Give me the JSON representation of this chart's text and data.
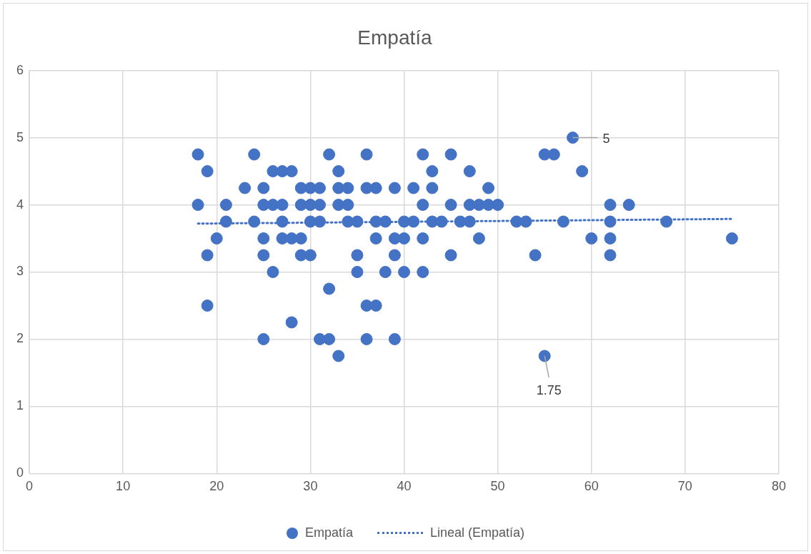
{
  "chart_data": {
    "type": "scatter",
    "title": "Empatía",
    "xlim": [
      0,
      80
    ],
    "xticks": [
      0,
      10,
      20,
      30,
      40,
      50,
      60,
      70,
      80
    ],
    "ylim": [
      0,
      6
    ],
    "yticks": [
      0,
      1,
      2,
      3,
      4,
      5,
      6
    ],
    "grid": true,
    "legend": "bottom",
    "series": [
      {
        "name": "Empatía",
        "marker": "circle",
        "color": "#4472c4",
        "x": [
          58,
          18,
          24,
          32,
          36,
          42,
          45,
          55,
          56,
          19,
          26,
          27,
          28,
          33,
          43,
          47,
          59,
          23,
          25,
          29,
          30,
          31,
          33,
          34,
          36,
          37,
          39,
          41,
          43,
          49,
          18,
          21,
          25,
          26,
          27,
          29,
          30,
          31,
          33,
          34,
          42,
          45,
          47,
          48,
          49,
          50,
          62,
          64,
          21,
          24,
          27,
          30,
          31,
          34,
          35,
          37,
          38,
          40,
          41,
          43,
          44,
          46,
          47,
          52,
          53,
          57,
          62,
          68,
          20,
          25,
          27,
          28,
          29,
          37,
          39,
          40,
          42,
          48,
          60,
          62,
          75,
          19,
          25,
          29,
          30,
          35,
          39,
          45,
          54,
          62,
          26,
          35,
          38,
          40,
          42,
          32,
          19,
          36,
          37,
          28,
          25,
          31,
          32,
          36,
          39,
          33,
          55
        ],
        "values": [
          5,
          4.75,
          4.75,
          4.75,
          4.75,
          4.75,
          4.75,
          4.75,
          4.75,
          4.5,
          4.5,
          4.5,
          4.5,
          4.5,
          4.5,
          4.5,
          4.5,
          4.25,
          4.25,
          4.25,
          4.25,
          4.25,
          4.25,
          4.25,
          4.25,
          4.25,
          4.25,
          4.25,
          4.25,
          4.25,
          4,
          4,
          4,
          4,
          4,
          4,
          4,
          4,
          4,
          4,
          4,
          4,
          4,
          4,
          4,
          4,
          4,
          4,
          3.75,
          3.75,
          3.75,
          3.75,
          3.75,
          3.75,
          3.75,
          3.75,
          3.75,
          3.75,
          3.75,
          3.75,
          3.75,
          3.75,
          3.75,
          3.75,
          3.75,
          3.75,
          3.75,
          3.75,
          3.5,
          3.5,
          3.5,
          3.5,
          3.5,
          3.5,
          3.5,
          3.5,
          3.5,
          3.5,
          3.5,
          3.5,
          3.5,
          3.25,
          3.25,
          3.25,
          3.25,
          3.25,
          3.25,
          3.25,
          3.25,
          3.25,
          3,
          3,
          3,
          3,
          3,
          2.75,
          2.5,
          2.5,
          2.5,
          2.25,
          2,
          2,
          2,
          2,
          2,
          1.75,
          1.75
        ]
      },
      {
        "name": "Lineal (Empatía)",
        "type": "line",
        "color": "#4472c4",
        "line_style": "dotted",
        "marker": "none",
        "x": [
          18,
          75
        ],
        "values": [
          3.72,
          3.79
        ]
      }
    ],
    "annotations": [
      {
        "text": "5",
        "x": 58,
        "y": 5
      },
      {
        "text": "1.75",
        "x": 55,
        "y": 1.75
      }
    ]
  }
}
